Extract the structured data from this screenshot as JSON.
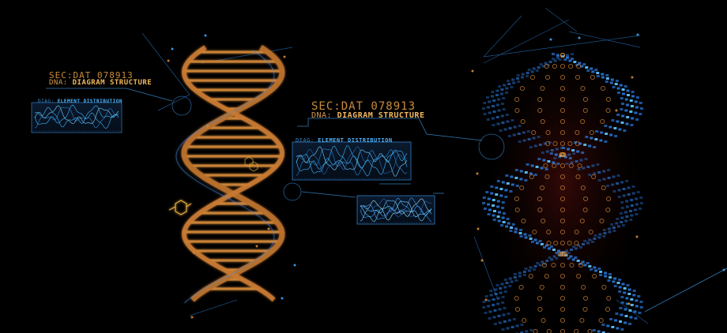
{
  "labels": {
    "left": {
      "code": "SEC:DAT 078913",
      "dna_prefix": "DNA:",
      "dna_title": "DIAGRAM STRUCTURE",
      "panel_prefix": "DIAG:",
      "panel_title": "ELEMENT DISTRIBUTION"
    },
    "center": {
      "code": "SEC:DAT 078913",
      "dna_prefix": "DNA:",
      "dna_title": "DIAGRAM STRUCTURE",
      "panel_prefix": "DIAG:",
      "panel_title": "ELEMENT DISTRIBUTION"
    }
  },
  "colors": {
    "background": "#000000",
    "orange": "#d48a3a",
    "orange_bright": "#f2b85f",
    "blue": "#2f8cff",
    "blue_bright": "#5fc8ff",
    "cyan_line": "#3aa6ff"
  }
}
